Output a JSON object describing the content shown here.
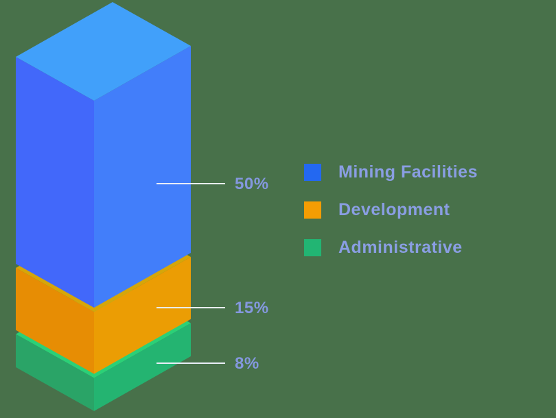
{
  "background_color": "#48714A",
  "chart_data": {
    "type": "bar",
    "subtype": "isometric-3d-stacked-column",
    "title": "",
    "xlabel": "",
    "ylabel": "",
    "axes_visible": false,
    "grid": false,
    "categories": [
      "Mining Facilities",
      "Development",
      "Administrative"
    ],
    "values": [
      50,
      15,
      8
    ],
    "value_labels": [
      "50%",
      "15%",
      "8%"
    ],
    "legend_position": "right",
    "label_text_color": "#8498DE",
    "leader_line_color": "#E9EEF8",
    "series": [
      {
        "name": "Mining Facilities",
        "value": 50,
        "label": "50%",
        "colors": {
          "top": "#41A0FA",
          "left": "#4268FA",
          "right": "#427EFA",
          "legend": "#2368F1"
        }
      },
      {
        "name": "Development",
        "value": 15,
        "label": "15%",
        "colors": {
          "top": "#D6A609",
          "left": "#E78D04",
          "right": "#EB9D04",
          "legend": "#F49D03"
        }
      },
      {
        "name": "Administrative",
        "value": 8,
        "label": "8%",
        "colors": {
          "top": "#2BD077",
          "left": "#2AA467",
          "right": "#24B471",
          "legend": "#22B573"
        }
      }
    ]
  }
}
